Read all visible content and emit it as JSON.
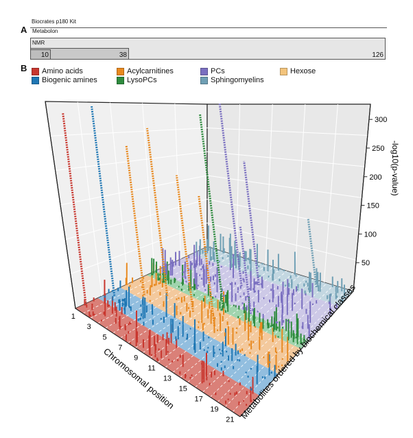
{
  "panels": {
    "a": "A",
    "b": "B"
  },
  "kit_bars": {
    "kit": {
      "label": "Biocrates p180 Kit",
      "count": ""
    },
    "metabolon": {
      "label": "Metabolon",
      "count": "126"
    },
    "nmr": {
      "label": "NMR",
      "count": "38"
    },
    "inner": {
      "label": "",
      "count": "10"
    }
  },
  "legend": [
    {
      "label": "Amino acids",
      "color": "#c8372f"
    },
    {
      "label": "Biogenic amines",
      "color": "#1f77b4"
    },
    {
      "label": "Acylcarnitines",
      "color": "#e8891f"
    },
    {
      "label": "LysoPCs",
      "color": "#2e8b3e"
    },
    {
      "label": "PCs",
      "color": "#7a6fc0"
    },
    {
      "label": "Sphingomyelins",
      "color": "#6f9fb4"
    },
    {
      "label": "Hexose",
      "color": "#f3c47c"
    }
  ],
  "chart_data": {
    "type": "scatter",
    "title": "",
    "xlabel": "Chromosomal position",
    "ylabel": "Metabolites ordered by biochemical classes",
    "zlabel": "-log10(p-value)",
    "x_ticks": [
      "1",
      "3",
      "5",
      "7",
      "9",
      "11",
      "13",
      "15",
      "17",
      "19",
      "21"
    ],
    "z_ticks": [
      50,
      100,
      150,
      200,
      250,
      300
    ],
    "zlim": [
      0,
      320
    ],
    "floor_bands": [
      {
        "class": "Amino acids",
        "color": "#d36a60"
      },
      {
        "class": "Biogenic amines",
        "color": "#7fb3d9"
      },
      {
        "class": "Acylcarnitines",
        "color": "#f1c08c"
      },
      {
        "class": "LysoPCs",
        "color": "#8fcca0"
      },
      {
        "class": "PCs",
        "color": "#c4c0e3"
      },
      {
        "class": "Sphingomyelins",
        "color": "#b9d0dc"
      }
    ],
    "peaks": [
      {
        "class": "Amino acids",
        "chrom": 1.2,
        "metab": 0.4,
        "p": 310
      },
      {
        "class": "Biogenic amines",
        "chrom": 1.7,
        "metab": 1.5,
        "p": 305
      },
      {
        "class": "Acylcarnitines",
        "chrom": 3.5,
        "metab": 2.2,
        "p": 240
      },
      {
        "class": "Acylcarnitines",
        "chrom": 5.2,
        "metab": 2.6,
        "p": 270
      },
      {
        "class": "Acylcarnitines",
        "chrom": 9.0,
        "metab": 2.5,
        "p": 220
      },
      {
        "class": "Acylcarnitines",
        "chrom": 12.2,
        "metab": 2.4,
        "p": 210
      },
      {
        "class": "LysoPCs",
        "chrom": 10.8,
        "metab": 3.5,
        "p": 310
      },
      {
        "class": "PCs",
        "chrom": 10.0,
        "metab": 4.6,
        "p": 295
      },
      {
        "class": "PCs",
        "chrom": 11.5,
        "metab": 4.8,
        "p": 200
      },
      {
        "class": "PCs",
        "chrom": 14.0,
        "metab": 5.0,
        "p": 140
      },
      {
        "class": "Sphingomyelins",
        "chrom": 17.5,
        "metab": 5.6,
        "p": 110
      }
    ]
  }
}
